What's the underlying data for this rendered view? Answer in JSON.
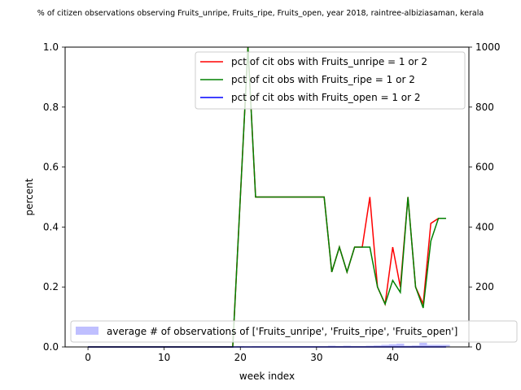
{
  "chart_data": {
    "type": "line",
    "title": "% of citizen observations observing Fruits_unripe, Fruits_ripe, Fruits_open, year 2018, raintree-albiziasaman, kerala",
    "xlabel": "week index",
    "ylabel": "percent",
    "y2label": "",
    "xlim": [
      -3,
      50
    ],
    "ylim": [
      0,
      1
    ],
    "y2lim": [
      0,
      1000
    ],
    "x_ticks": [
      0,
      10,
      20,
      30,
      40
    ],
    "y_ticks": [
      0.0,
      0.2,
      0.4,
      0.6,
      0.8,
      1.0
    ],
    "y2_ticks": [
      0,
      200,
      400,
      600,
      800,
      1000
    ],
    "grid": false,
    "legend_position": "top-right",
    "series": [
      {
        "name": "pct of cit obs with Fruits_unripe = 1 or 2",
        "color": "#ff0000",
        "x": [
          0,
          1,
          2,
          3,
          4,
          5,
          6,
          7,
          8,
          9,
          10,
          11,
          12,
          13,
          14,
          15,
          16,
          17,
          18,
          19,
          20,
          21,
          22,
          23,
          24,
          25,
          26,
          27,
          28,
          29,
          30,
          31,
          32,
          33,
          34,
          35,
          36,
          37,
          38,
          39,
          40,
          41,
          42,
          43,
          44,
          45,
          46,
          47
        ],
        "values": [
          0,
          0,
          0,
          0,
          0,
          0,
          0,
          0,
          0,
          0,
          0,
          0,
          0,
          0,
          0,
          0,
          0,
          0,
          0,
          0,
          0.5,
          1.0,
          0.5,
          0.5,
          0.5,
          0.5,
          0.5,
          0.5,
          0.5,
          0.5,
          0.5,
          0.5,
          0.25,
          0.333,
          0.25,
          0.333,
          0.333,
          0.5,
          0.2,
          0.143,
          0.333,
          0.2,
          0.5,
          0.2,
          0.143,
          0.412,
          0.429,
          0.429
        ]
      },
      {
        "name": "pct of cit obs with Fruits_ripe = 1 or 2",
        "color": "#008000",
        "x": [
          0,
          1,
          2,
          3,
          4,
          5,
          6,
          7,
          8,
          9,
          10,
          11,
          12,
          13,
          14,
          15,
          16,
          17,
          18,
          19,
          20,
          21,
          22,
          23,
          24,
          25,
          26,
          27,
          28,
          29,
          30,
          31,
          32,
          33,
          34,
          35,
          36,
          37,
          38,
          39,
          40,
          41,
          42,
          43,
          44,
          45,
          46,
          47
        ],
        "values": [
          0,
          0,
          0,
          0,
          0,
          0,
          0,
          0,
          0,
          0,
          0,
          0,
          0,
          0,
          0,
          0,
          0,
          0,
          0,
          0,
          0.5,
          1.0,
          0.5,
          0.5,
          0.5,
          0.5,
          0.5,
          0.5,
          0.5,
          0.5,
          0.5,
          0.5,
          0.25,
          0.333,
          0.25,
          0.333,
          0.333,
          0.333,
          0.2,
          0.143,
          0.222,
          0.182,
          0.5,
          0.2,
          0.13,
          0.353,
          0.429,
          0.429
        ]
      },
      {
        "name": "pct of cit obs with Fruits_open = 1 or 2",
        "color": "#0000ff",
        "x": [
          0,
          1,
          2,
          3,
          4,
          5,
          6,
          7,
          8,
          9,
          10,
          11,
          12,
          13,
          14,
          15,
          16,
          17,
          18,
          19,
          20,
          21,
          22,
          23,
          24,
          25,
          26,
          27,
          28,
          29,
          30,
          31,
          32,
          33,
          34,
          35,
          36,
          37,
          38,
          39,
          40,
          41,
          42,
          43,
          44,
          45,
          46,
          47
        ],
        "values": [
          0,
          0,
          0,
          0,
          0,
          0,
          0,
          0,
          0,
          0,
          0,
          0,
          0,
          0,
          0,
          0,
          0,
          0,
          0,
          0,
          0,
          0,
          0,
          0,
          0,
          0,
          0,
          0,
          0,
          0,
          0,
          0,
          0,
          0,
          0,
          0,
          0,
          0,
          0,
          0,
          0,
          0,
          0,
          0,
          0,
          0,
          0,
          0
        ]
      }
    ],
    "bars": {
      "name": "average # of observations of ['Fruits_unripe', 'Fruits_ripe', 'Fruits_open']",
      "color": "#0000ff",
      "axis": "right",
      "x": [
        19,
        20,
        21,
        22,
        23,
        24,
        25,
        26,
        27,
        28,
        29,
        30,
        31,
        32,
        33,
        34,
        35,
        36,
        37,
        38,
        39,
        40,
        41,
        42,
        43,
        44,
        45,
        46,
        47
      ],
      "values": [
        1,
        2,
        1,
        2,
        2,
        2,
        2,
        2,
        2,
        2,
        2,
        2,
        2,
        4,
        3,
        4,
        3,
        3,
        4,
        5,
        7,
        9,
        11,
        4,
        5,
        14,
        7,
        7,
        7
      ]
    }
  }
}
